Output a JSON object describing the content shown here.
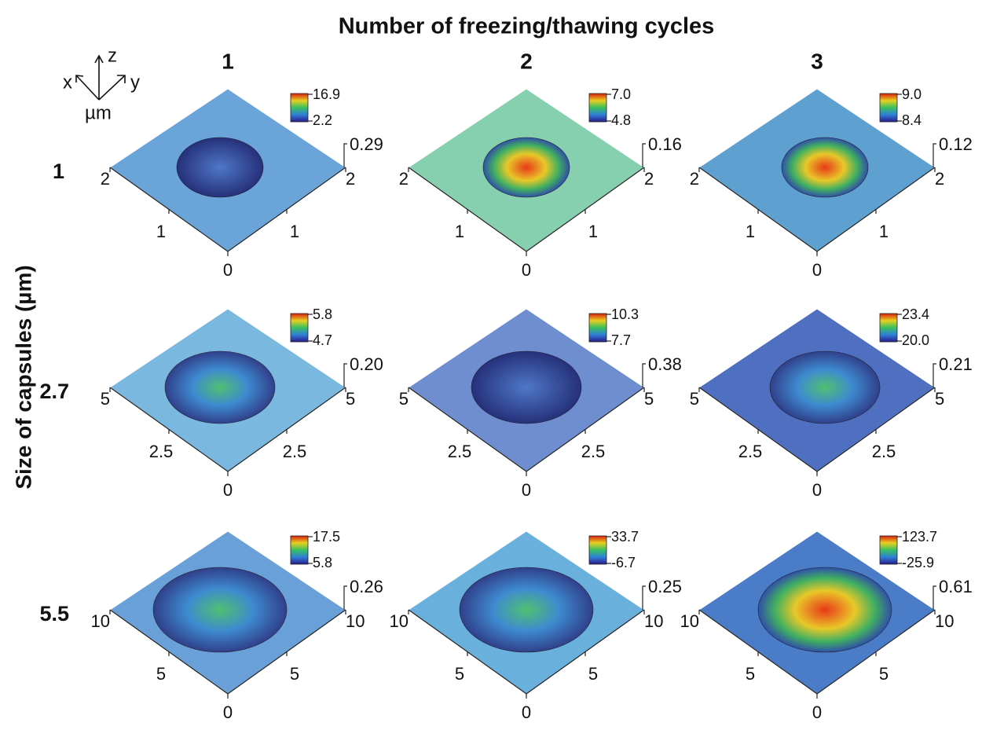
{
  "title": "Number of freezing/thawing cycles",
  "row_axis_label": "Size of capsules (µm)",
  "axes_icon": {
    "x": "x",
    "y": "y",
    "z": "z",
    "unit": "µm"
  },
  "columns": [
    "1",
    "2",
    "3"
  ],
  "rows": [
    {
      "label": "1",
      "panels": [
        {
          "cbar_max": "16.9",
          "cbar_min": "2.2",
          "z": "0.29",
          "left": "2",
          "right": "2",
          "mid_left": "1",
          "mid_right": "1",
          "origin": "0"
        },
        {
          "cbar_max": "7.0",
          "cbar_min": "4.8",
          "z": "0.16",
          "left": "2",
          "right": "2",
          "mid_left": "1",
          "mid_right": "1",
          "origin": "0"
        },
        {
          "cbar_max": "9.0",
          "cbar_min": "8.4",
          "z": "0.12",
          "left": "2",
          "right": "2",
          "mid_left": "1",
          "mid_right": "1",
          "origin": "0"
        }
      ]
    },
    {
      "label": "2.7",
      "panels": [
        {
          "cbar_max": "5.8",
          "cbar_min": "4.7",
          "z": "0.20",
          "left": "5",
          "right": "5",
          "mid_left": "2.5",
          "mid_right": "2.5",
          "origin": "0"
        },
        {
          "cbar_max": "10.3",
          "cbar_min": "7.7",
          "z": "0.38",
          "left": "5",
          "right": "5",
          "mid_left": "2.5",
          "mid_right": "2.5",
          "origin": "0"
        },
        {
          "cbar_max": "23.4",
          "cbar_min": "20.0",
          "z": "0.21",
          "left": "5",
          "right": "5",
          "mid_left": "2.5",
          "mid_right": "2.5",
          "origin": "0"
        }
      ]
    },
    {
      "label": "5.5",
      "panels": [
        {
          "cbar_max": "17.5",
          "cbar_min": "5.8",
          "z": "0.26",
          "left": "10",
          "right": "10",
          "mid_left": "5",
          "mid_right": "5",
          "origin": "0"
        },
        {
          "cbar_max": "33.7",
          "cbar_min": "-6.7",
          "z": "0.25",
          "left": "10",
          "right": "10",
          "mid_left": "5",
          "mid_right": "5",
          "origin": "0"
        },
        {
          "cbar_max": "123.7",
          "cbar_min": "-25.9",
          "z": "0.61",
          "left": "10",
          "right": "10",
          "mid_left": "5",
          "mid_right": "5",
          "origin": "0"
        }
      ]
    }
  ]
}
